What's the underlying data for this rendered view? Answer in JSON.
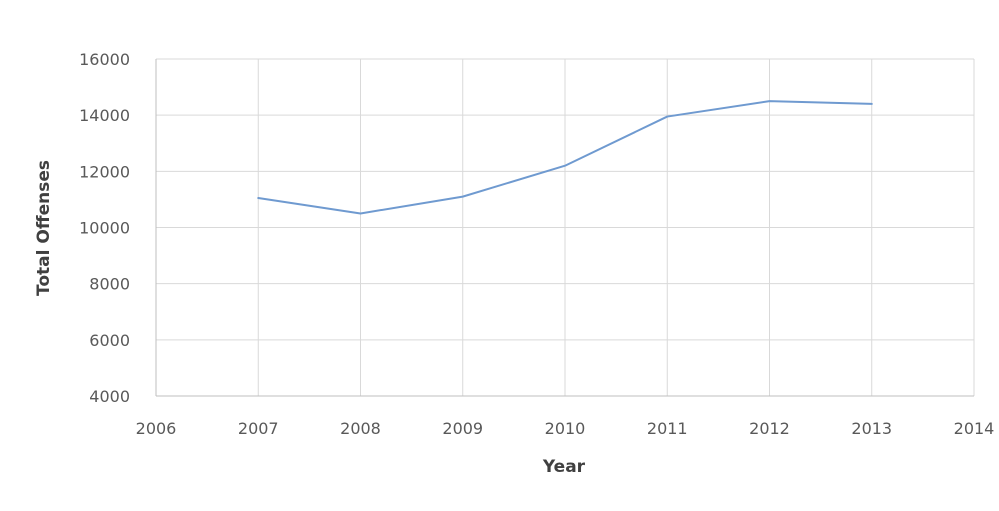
{
  "chart_data": {
    "type": "line",
    "title": "",
    "xlabel": "Year",
    "ylabel": "Total Offenses",
    "xlim": [
      2006,
      2014
    ],
    "ylim": [
      4000,
      16000
    ],
    "x_ticks": [
      2006,
      2007,
      2008,
      2009,
      2010,
      2011,
      2012,
      2013,
      2014
    ],
    "y_ticks": [
      4000,
      6000,
      8000,
      10000,
      12000,
      14000,
      16000
    ],
    "grid": true,
    "legend": "none",
    "series": [
      {
        "x": [
          2007,
          2008,
          2009,
          2010,
          2011,
          2012,
          2013
        ],
        "values": [
          11050,
          10500,
          11100,
          12200,
          13950,
          14500,
          14400
        ],
        "color": "#6f9ad0"
      }
    ],
    "colors": {
      "grid": "#d9d9d9",
      "axis": "#bfbfbf",
      "tick_text": "#595959",
      "label_text": "#404040"
    }
  }
}
